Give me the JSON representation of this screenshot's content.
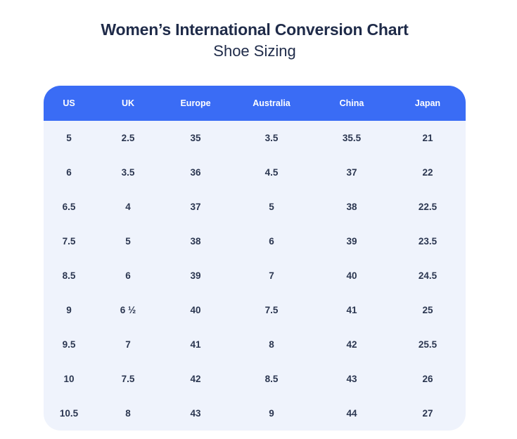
{
  "page": {
    "title": "Women’s International Conversion Chart",
    "subtitle": "Shoe Sizing"
  },
  "colors": {
    "header_bg": "#3a6cf5",
    "header_text": "#ffffff",
    "body_bg": "#eff3fc",
    "title_text": "#1f2b49",
    "cell_text": "#2b3650"
  },
  "chart_data": {
    "type": "table",
    "title": "Women’s International Conversion Chart",
    "subtitle": "Shoe Sizing",
    "columns": [
      "US",
      "UK",
      "Europe",
      "Australia",
      "China",
      "Japan"
    ],
    "rows": [
      [
        "5",
        "2.5",
        "35",
        "3.5",
        "35.5",
        "21"
      ],
      [
        "6",
        "3.5",
        "36",
        "4.5",
        "37",
        "22"
      ],
      [
        "6.5",
        "4",
        "37",
        "5",
        "38",
        "22.5"
      ],
      [
        "7.5",
        "5",
        "38",
        "6",
        "39",
        "23.5"
      ],
      [
        "8.5",
        "6",
        "39",
        "7",
        "40",
        "24.5"
      ],
      [
        "9",
        "6 ½",
        "40",
        "7.5",
        "41",
        "25"
      ],
      [
        "9.5",
        "7",
        "41",
        "8",
        "42",
        "25.5"
      ],
      [
        "10",
        "7.5",
        "42",
        "8.5",
        "43",
        "26"
      ],
      [
        "10.5",
        "8",
        "43",
        "9",
        "44",
        "27"
      ]
    ],
    "layout": {
      "header_position": "top",
      "corner_radius_px": 24,
      "grid": false
    }
  }
}
